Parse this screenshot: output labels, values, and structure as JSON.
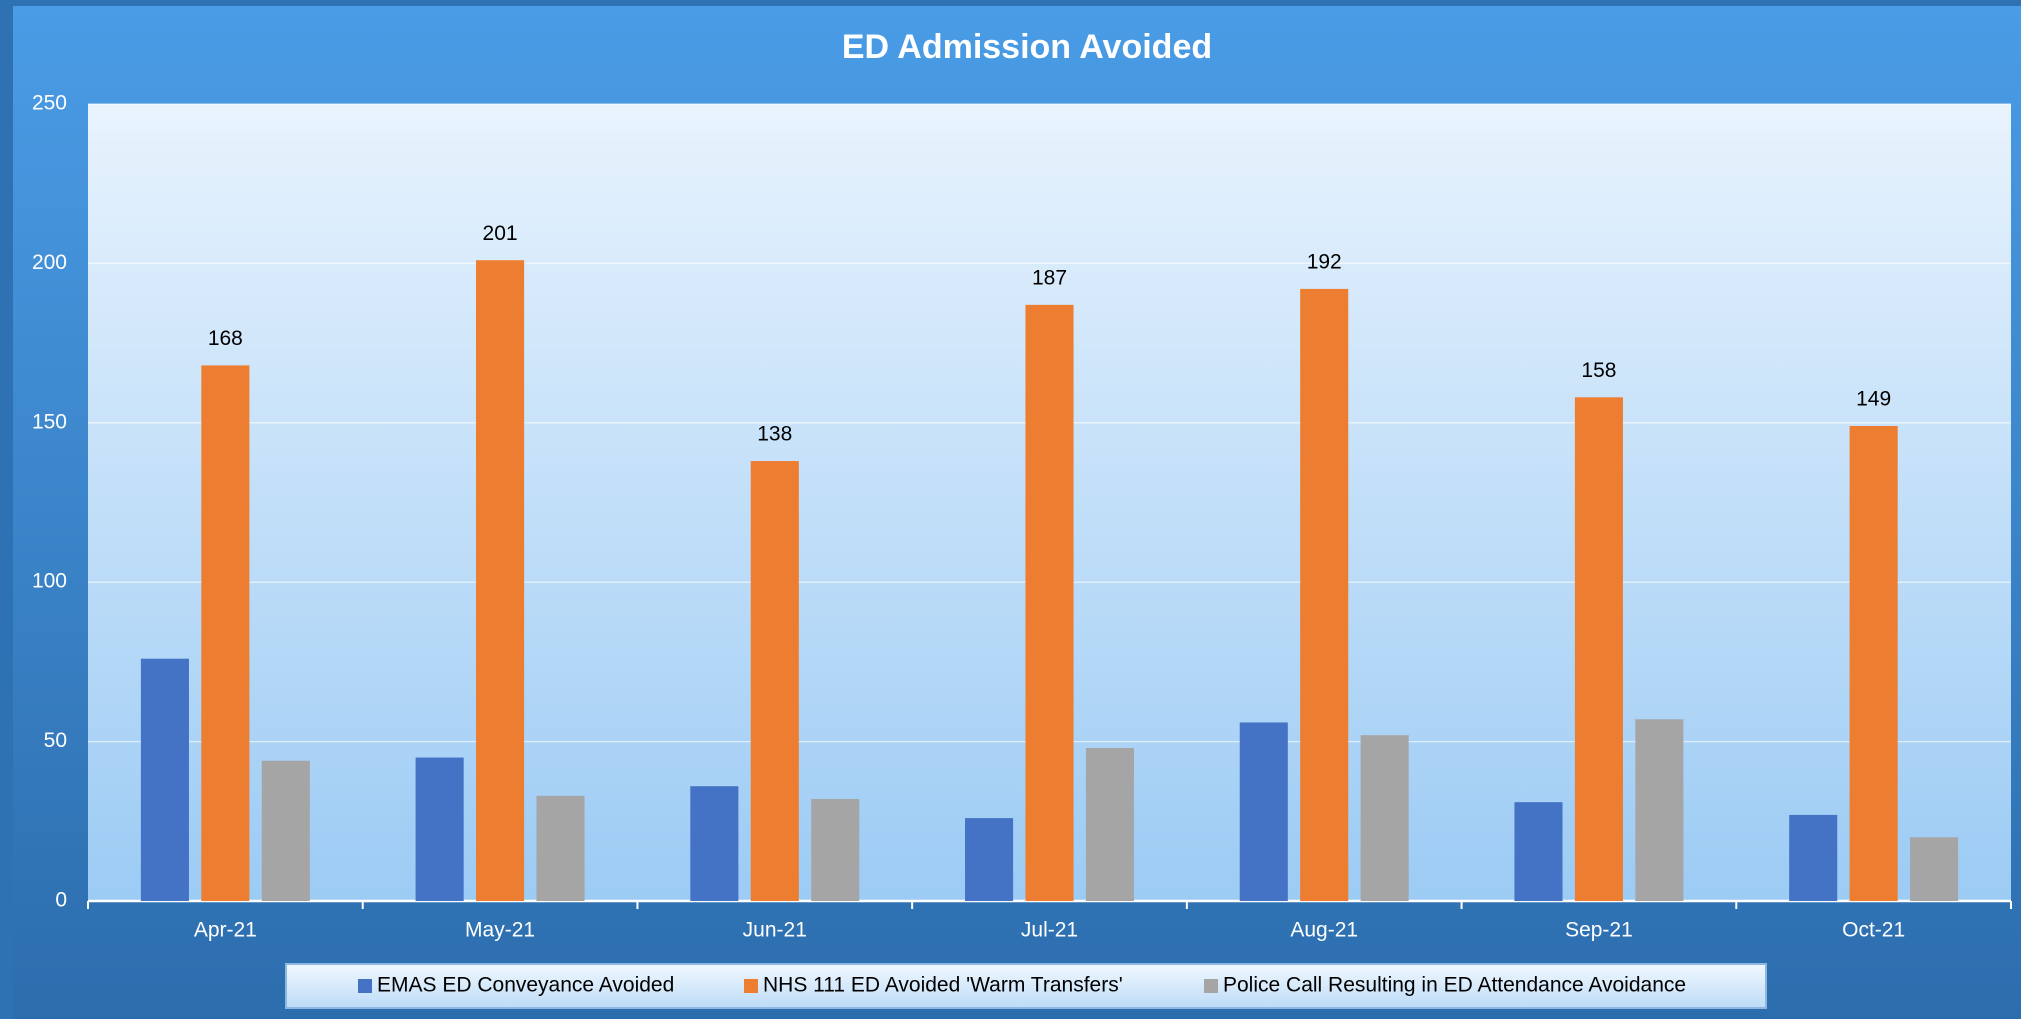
{
  "chart_data": {
    "type": "bar",
    "title": "ED Admission Avoided",
    "categories": [
      "Apr-21",
      "May-21",
      "Jun-21",
      "Jul-21",
      "Aug-21",
      "Sep-21",
      "Oct-21"
    ],
    "series": [
      {
        "name": "EMAS ED Conveyance Avoided",
        "color": "#4472c4",
        "values": [
          76,
          45,
          36,
          26,
          56,
          31,
          27
        ],
        "show_labels": false
      },
      {
        "name": "NHS 111 ED Avoided 'Warm Transfers'",
        "color": "#ed7d31",
        "values": [
          168,
          201,
          138,
          187,
          192,
          158,
          149
        ],
        "show_labels": true
      },
      {
        "name": "Police Call Resulting in ED Attendance Avoidance",
        "color": "#a5a5a5",
        "values": [
          44,
          33,
          32,
          48,
          52,
          57,
          20
        ],
        "show_labels": false
      }
    ],
    "ylim": [
      0,
      250
    ],
    "yticks": [
      0,
      50,
      100,
      150,
      200,
      250
    ],
    "grid": true,
    "legend": "bottom"
  }
}
